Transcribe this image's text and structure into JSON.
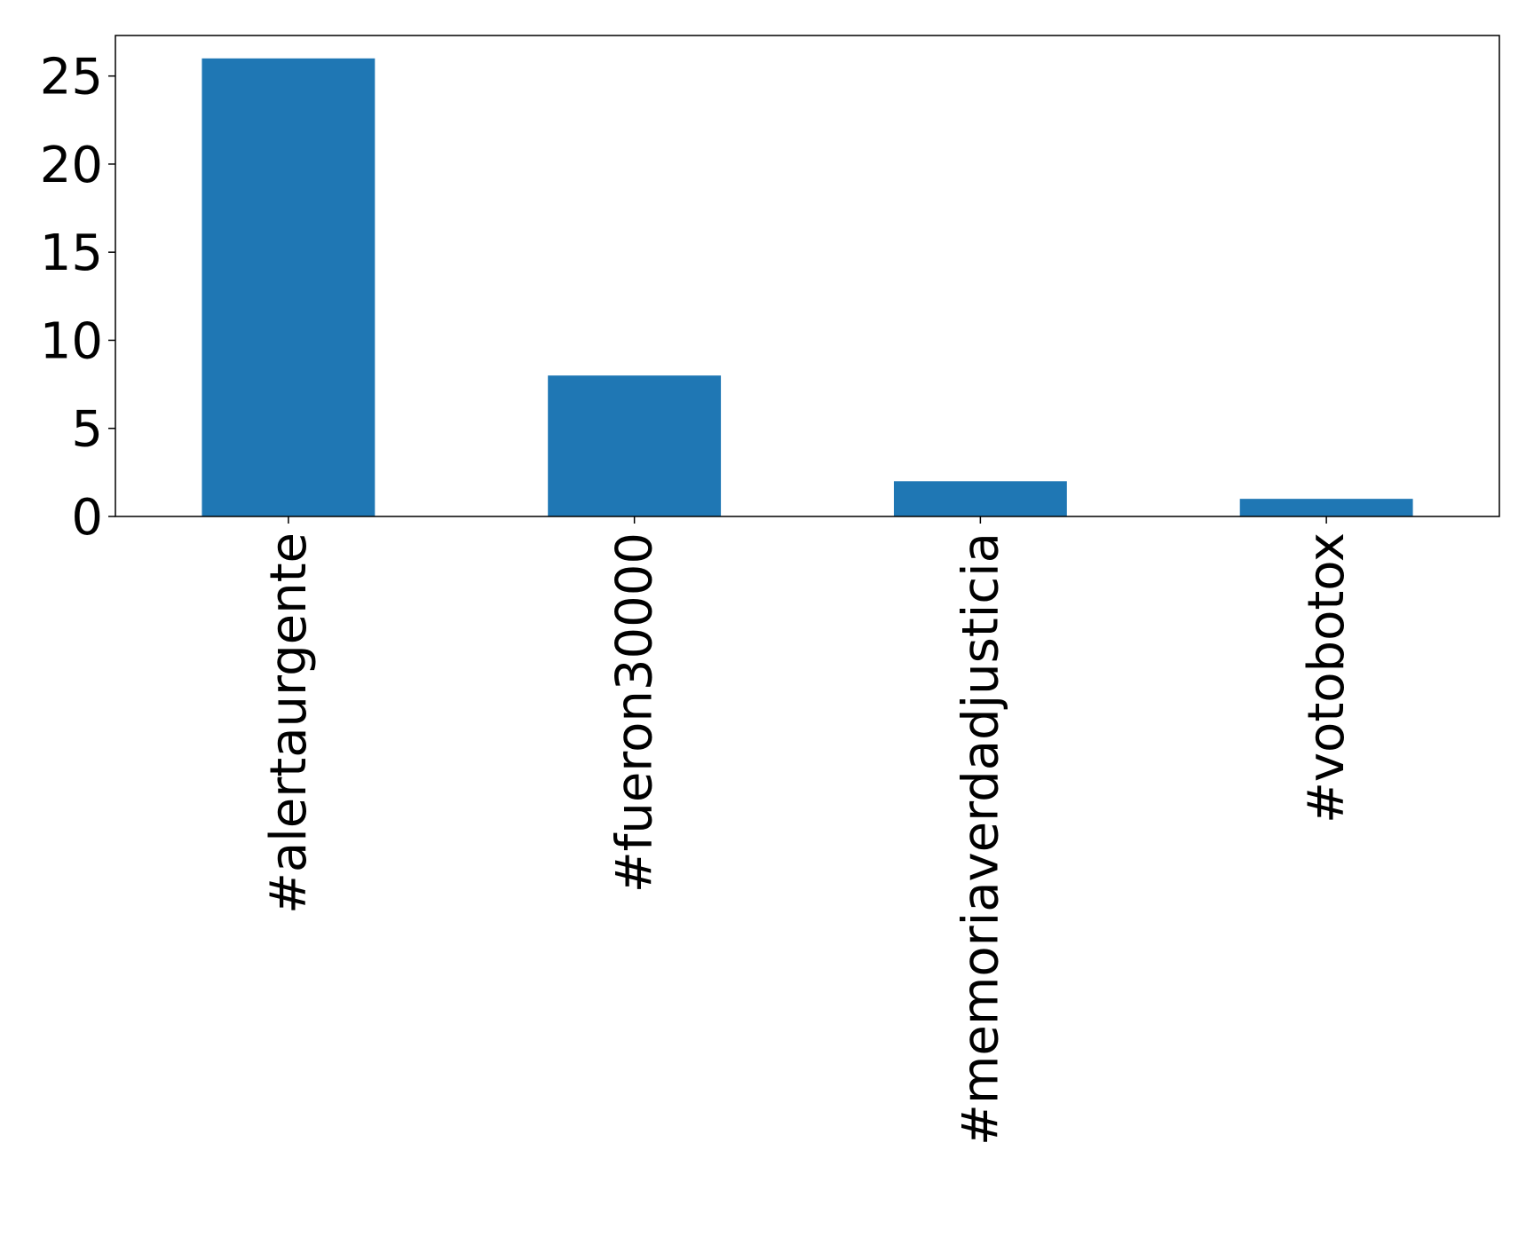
{
  "chart_data": {
    "type": "bar",
    "title": "",
    "xlabel": "",
    "ylabel": "",
    "categories": [
      "#alertaurgente",
      "#fueron30000",
      "#memoriaverdadjusticia",
      "#votobotox"
    ],
    "values": [
      26,
      8,
      2,
      1
    ],
    "ylim": [
      0,
      27.3
    ],
    "yticks": [
      0,
      5,
      10,
      15,
      20,
      25
    ],
    "grid": false,
    "legend": "none",
    "bar_color": "#1f77b4"
  }
}
